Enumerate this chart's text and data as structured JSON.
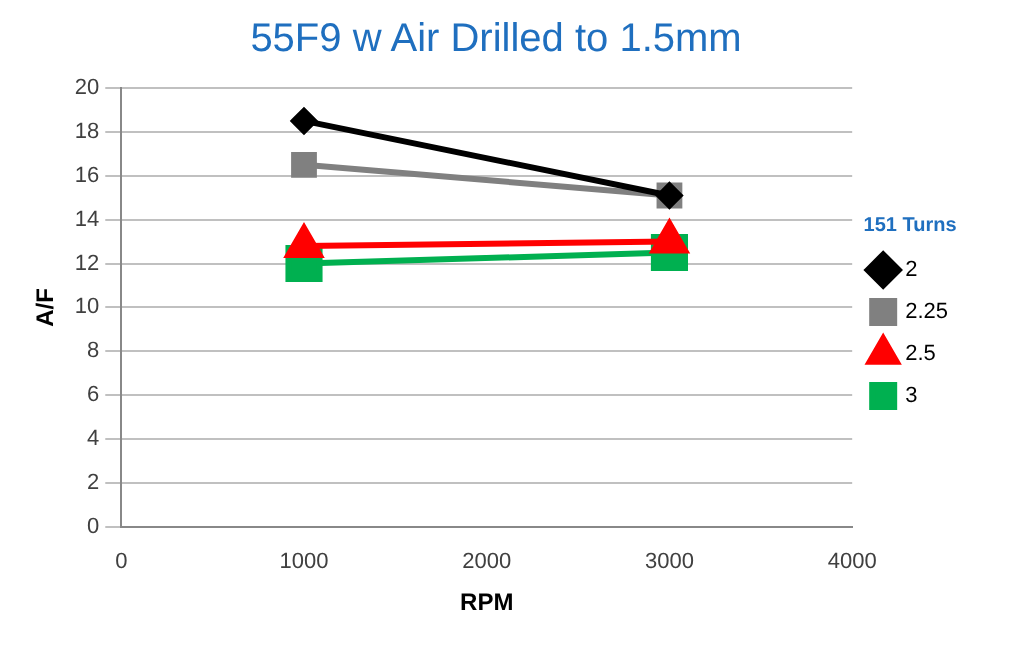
{
  "chart_data": {
    "type": "line",
    "title": "55F9 w Air Drilled to 1.5mm",
    "xlabel": "RPM",
    "ylabel": "A/F",
    "legend_title": "151 Turns",
    "x": [
      1000,
      3000
    ],
    "series": [
      {
        "name": "2",
        "color": "#000000",
        "values": [
          18.5,
          15.1
        ],
        "marker": "diamond"
      },
      {
        "name": "2.25",
        "color": "#808080",
        "values": [
          16.5,
          15.1
        ],
        "marker": "square"
      },
      {
        "name": "2.5",
        "color": "#ff0000",
        "values": [
          12.8,
          13.0
        ],
        "marker": "triangle"
      },
      {
        "name": "3",
        "color": "#00b050",
        "values": [
          12.0,
          12.5
        ],
        "marker": "square"
      }
    ],
    "xlim": [
      0,
      4000
    ],
    "xticks": [
      0,
      1000,
      2000,
      3000,
      4000
    ],
    "ylim": [
      0,
      20
    ],
    "yticks": [
      0,
      2,
      4,
      6,
      8,
      10,
      12,
      14,
      16,
      18,
      20
    ],
    "grid": "y",
    "legend": "right",
    "line_style": "solid"
  }
}
